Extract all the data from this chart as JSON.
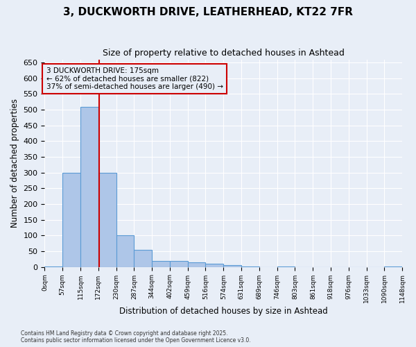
{
  "title": "3, DUCKWORTH DRIVE, LEATHERHEAD, KT22 7FR",
  "subtitle": "Size of property relative to detached houses in Ashtead",
  "xlabel": "Distribution of detached houses by size in Ashtead",
  "ylabel": "Number of detached properties",
  "footnote1": "Contains HM Land Registry data © Crown copyright and database right 2025.",
  "footnote2": "Contains public sector information licensed under the Open Government Licence v3.0.",
  "annotation_title": "3 DUCKWORTH DRIVE: 175sqm",
  "annotation_line1": "← 62% of detached houses are smaller (822)",
  "annotation_line2": "37% of semi-detached houses are larger (490) →",
  "subject_value": 175,
  "bar_edges": [
    0,
    57,
    115,
    172,
    230,
    287,
    344,
    402,
    459,
    516,
    574,
    631,
    689,
    746,
    803,
    861,
    918,
    976,
    1033,
    1090,
    1148
  ],
  "bar_heights": [
    1,
    300,
    510,
    300,
    100,
    55,
    20,
    20,
    15,
    10,
    5,
    1,
    0,
    1,
    0,
    0,
    0,
    0,
    0,
    1
  ],
  "bar_color": "#aec6e8",
  "bar_edge_color": "#5b9bd5",
  "vline_color": "#cc0000",
  "annotation_box_color": "#cc0000",
  "bg_color": "#e8eef7",
  "ylim": [
    0,
    660
  ],
  "yticks": [
    0,
    50,
    100,
    150,
    200,
    250,
    300,
    350,
    400,
    450,
    500,
    550,
    600,
    650
  ]
}
